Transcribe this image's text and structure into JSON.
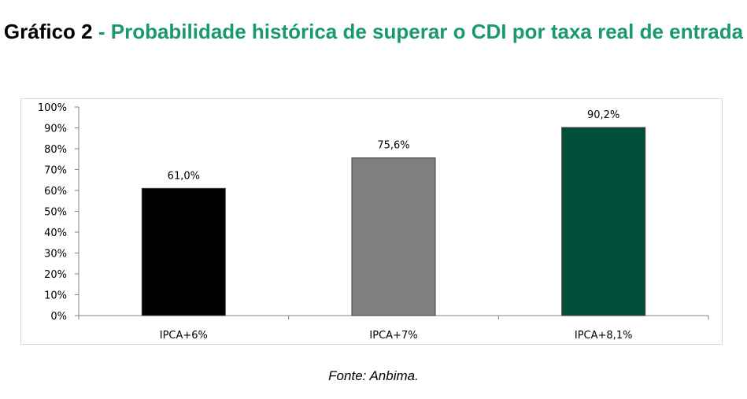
{
  "header": {
    "prefix": "Gráfico 2",
    "title": " - Probabilidade histórica de superar o CDI por taxa real de entrada"
  },
  "source": "Fonte: Anbima.",
  "chart_data": {
    "type": "bar",
    "categories": [
      "IPCA+6%",
      "IPCA+7%",
      "IPCA+8,1%"
    ],
    "values": [
      61.0,
      75.6,
      90.2
    ],
    "data_labels": [
      "61,0%",
      "75,6%",
      "90,2%"
    ],
    "colors": [
      "#000000",
      "#7f7f7f",
      "#00503a"
    ],
    "ylim": [
      0,
      100
    ],
    "yticks": [
      "0%",
      "10%",
      "20%",
      "30%",
      "40%",
      "50%",
      "60%",
      "70%",
      "80%",
      "90%",
      "100%"
    ],
    "grid": false,
    "legend": "none"
  }
}
